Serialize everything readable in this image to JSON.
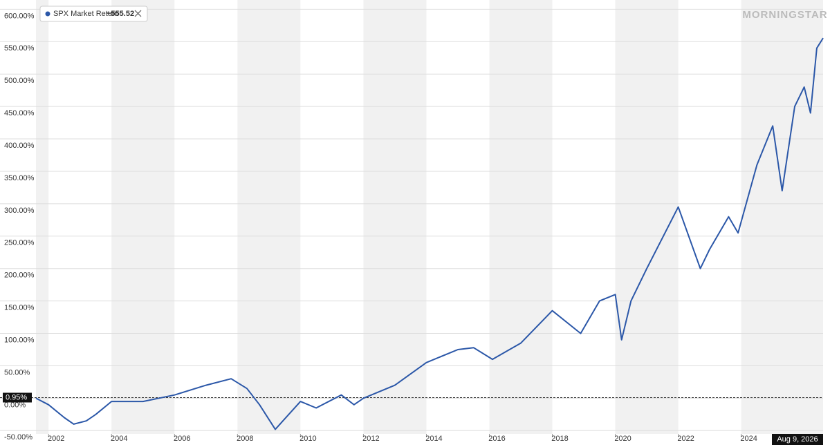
{
  "chart_data": {
    "type": "line",
    "legend_label": "SPX Market Return",
    "legend_value": "+555.52",
    "brand": "MORNINGSTAR",
    "date_label": "Aug 9, 2026",
    "baseline": {
      "value": 0.95,
      "label": "0.95%"
    },
    "xlim": [
      2001.6,
      2026.6
    ],
    "xticks": [
      2002,
      2004,
      2006,
      2008,
      2010,
      2012,
      2014,
      2016,
      2018,
      2020,
      2022,
      2024
    ],
    "ylim": [
      -55,
      610
    ],
    "yticks": [
      {
        "value": -50,
        "label": "-50.00%"
      },
      {
        "value": 0,
        "label": "0.00%"
      },
      {
        "value": 50,
        "label": "50.00%"
      },
      {
        "value": 100,
        "label": "100.00%"
      },
      {
        "value": 150,
        "label": "150.00%"
      },
      {
        "value": 200,
        "label": "200.00%"
      },
      {
        "value": 250,
        "label": "250.00%"
      },
      {
        "value": 300,
        "label": "300.00%"
      },
      {
        "value": 350,
        "label": "350.00%"
      },
      {
        "value": 400,
        "label": "400.00%"
      },
      {
        "value": 450,
        "label": "450.00%"
      },
      {
        "value": 500,
        "label": "500.00%"
      },
      {
        "value": 550,
        "label": "550.00%"
      },
      {
        "value": 600,
        "label": "600.00%"
      }
    ],
    "grid": true,
    "x": [
      2001.6,
      2002.0,
      2002.5,
      2002.8,
      2003.2,
      2003.5,
      2004.0,
      2005.0,
      2006.0,
      2007.0,
      2007.8,
      2008.3,
      2008.7,
      2009.2,
      2010.0,
      2010.5,
      2011.3,
      2011.7,
      2012.0,
      2013.0,
      2014.0,
      2015.0,
      2015.5,
      2016.1,
      2017.0,
      2018.0,
      2018.9,
      2019.5,
      2020.0,
      2020.2,
      2020.5,
      2021.0,
      2022.0,
      2022.7,
      2023.0,
      2023.6,
      2023.9,
      2024.5,
      2025.0,
      2025.3,
      2025.7,
      2026.0,
      2026.2,
      2026.4,
      2026.6
    ],
    "series": [
      {
        "name": "SPX Market Return",
        "color": "#2b57a8",
        "values": [
          0,
          -10,
          -30,
          -40,
          -35,
          -25,
          -5,
          -5,
          5,
          20,
          30,
          15,
          -10,
          -48,
          -5,
          -15,
          5,
          -10,
          0,
          20,
          55,
          75,
          78,
          60,
          85,
          135,
          100,
          150,
          160,
          90,
          150,
          200,
          295,
          200,
          230,
          280,
          255,
          360,
          420,
          320,
          450,
          480,
          440,
          540,
          555.52
        ]
      }
    ]
  }
}
